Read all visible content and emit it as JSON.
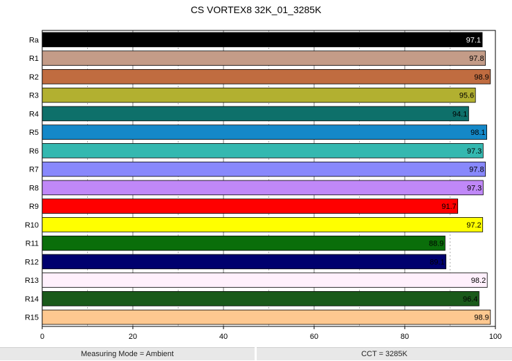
{
  "chart_data": {
    "type": "bar",
    "orientation": "horizontal",
    "title": "CS VORTEX8 32K_01_3285K",
    "categories": [
      "Ra",
      "R1",
      "R2",
      "R3",
      "R4",
      "R5",
      "R6",
      "R7",
      "R8",
      "R9",
      "R10",
      "R11",
      "R12",
      "R13",
      "R14",
      "R15"
    ],
    "values": [
      97.1,
      97.8,
      98.9,
      95.6,
      94.1,
      98.1,
      97.3,
      97.8,
      97.3,
      91.7,
      97.2,
      88.9,
      89.1,
      98.2,
      96.4,
      98.9
    ],
    "colors": [
      "#000000",
      "#c49c88",
      "#c06c40",
      "#b2b030",
      "#0e706a",
      "#1488c8",
      "#34b8b0",
      "#8888fc",
      "#c088f8",
      "#ff0000",
      "#ffff00",
      "#0a6e0a",
      "#00006e",
      "#fff0fc",
      "#1a5a1a",
      "#fec890"
    ],
    "label_colors": [
      "#ffffff",
      "#000000",
      "#000000",
      "#000000",
      "#000000",
      "#000000",
      "#000000",
      "#000000",
      "#000000",
      "#000000",
      "#000000",
      "#000000",
      "#000000",
      "#000000",
      "#000000",
      "#000000"
    ],
    "xlim": [
      0,
      100
    ],
    "xticks": [
      0,
      20,
      40,
      60,
      80,
      100
    ],
    "grid": "vertical"
  },
  "footer": {
    "measuring_mode": "Measuring Mode = Ambient",
    "cct": "CCT = 3285K"
  }
}
